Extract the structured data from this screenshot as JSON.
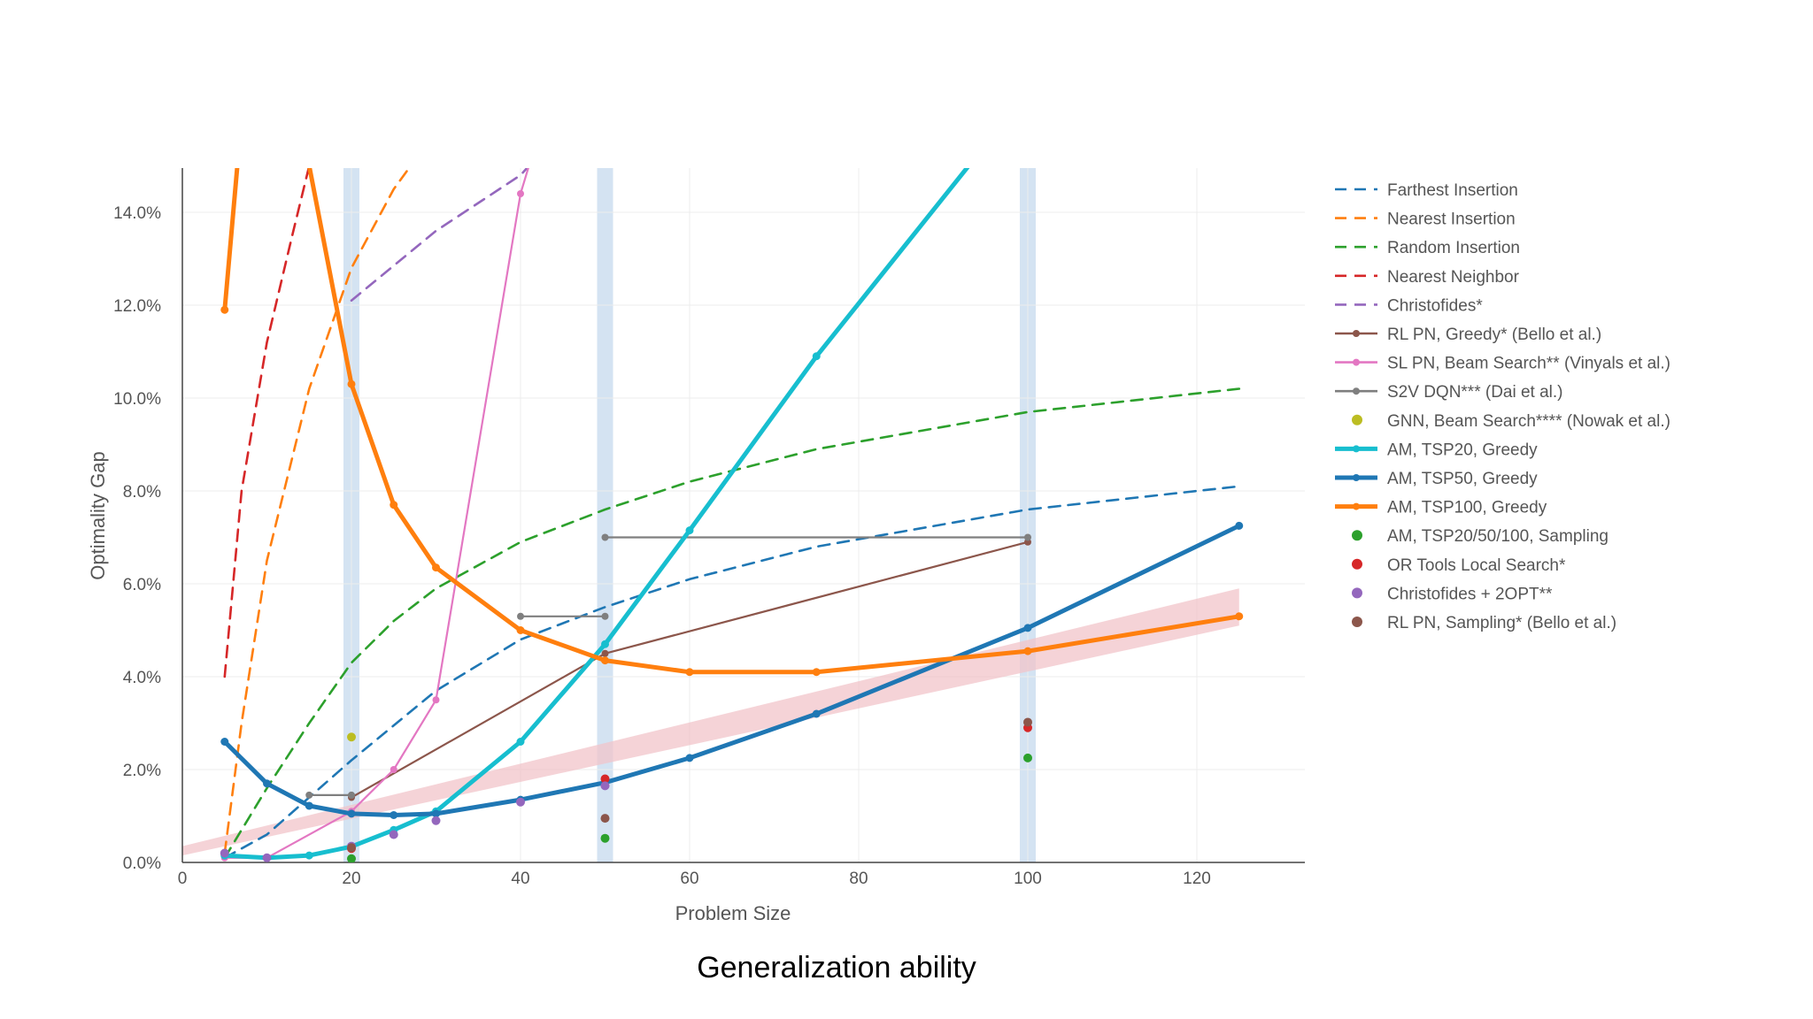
{
  "caption": "Generalization ability",
  "chart_data": {
    "type": "line",
    "xlabel": "Problem Size",
    "ylabel": "Optimality Gap",
    "xlim": [
      0,
      132
    ],
    "ylim": [
      0,
      15
    ],
    "x_ticks": [
      0,
      20,
      40,
      60,
      80,
      100,
      120
    ],
    "x_tick_labels": [
      "0",
      "20",
      "40",
      "60",
      "80",
      "100",
      "120"
    ],
    "y_ticks": [
      0,
      2,
      4,
      6,
      8,
      10,
      12,
      14
    ],
    "y_tick_labels": [
      "0.0%",
      "2.0%",
      "4.0%",
      "6.0%",
      "8.0%",
      "10.0%",
      "12.0%",
      "14.0%"
    ],
    "grid": true,
    "legend_position": "right",
    "highlight_bands_x": [
      20,
      50,
      100
    ],
    "shaded_band": {
      "lower": [
        [
          0,
          0.15
        ],
        [
          125,
          5.1
        ]
      ],
      "upper": [
        [
          0,
          0.35
        ],
        [
          125,
          5.9
        ]
      ],
      "color": "#f2c4c9"
    },
    "series": [
      {
        "name": "Farthest Insertion",
        "style": "dashed",
        "color": "#1f77b4",
        "x": [
          5,
          10,
          20,
          30,
          40,
          50,
          60,
          75,
          100,
          125
        ],
        "y": [
          0.1,
          0.6,
          2.2,
          3.7,
          4.8,
          5.5,
          6.1,
          6.8,
          7.6,
          8.1
        ]
      },
      {
        "name": "Nearest Insertion",
        "style": "dashed",
        "color": "#ff7f0e",
        "x": [
          5,
          7,
          10,
          15,
          20,
          25,
          27
        ],
        "y": [
          0.2,
          3.0,
          6.5,
          10.2,
          12.8,
          14.5,
          15.0
        ]
      },
      {
        "name": "Random Insertion",
        "style": "dashed",
        "color": "#2ca02c",
        "x": [
          5,
          10,
          15,
          20,
          25,
          30,
          40,
          50,
          60,
          75,
          100,
          125
        ],
        "y": [
          0.1,
          1.6,
          3.0,
          4.3,
          5.2,
          5.9,
          6.9,
          7.6,
          8.2,
          8.9,
          9.7,
          10.2
        ]
      },
      {
        "name": "Nearest Neighbor",
        "style": "dashed",
        "color": "#d62728",
        "x": [
          5,
          7,
          10,
          13,
          15
        ],
        "y": [
          4.0,
          8.0,
          11.2,
          13.5,
          15.0
        ]
      },
      {
        "name": "Christofides*",
        "style": "dashed",
        "color": "#9467bd",
        "x": [
          20,
          30,
          40,
          41
        ],
        "y": [
          12.1,
          13.6,
          14.8,
          15.0
        ]
      },
      {
        "name": "RL PN, Greedy* (Bello et al.)",
        "style": "line-marker",
        "color": "#8c564b",
        "x": [
          20,
          50,
          100
        ],
        "y": [
          1.4,
          4.5,
          6.9
        ]
      },
      {
        "name": "SL PN, Beam Search** (Vinyals et al.)",
        "style": "line-marker",
        "color": "#e377c2",
        "x": [
          5,
          10,
          20,
          25,
          30,
          40,
          41
        ],
        "y": [
          0.1,
          0.1,
          1.1,
          2.0,
          3.5,
          14.4,
          15.0
        ]
      },
      {
        "name": "S2V DQN*** (Dai et al.)",
        "style": "line-marker",
        "color": "#7f7f7f",
        "x": [
          15,
          20,
          null,
          40,
          50,
          null,
          50,
          100
        ],
        "y": [
          1.45,
          1.45,
          null,
          5.3,
          5.3,
          null,
          7.0,
          7.0
        ]
      },
      {
        "name": "GNN, Beam Search**** (Nowak et al.)",
        "style": "marker",
        "color": "#bcbd22",
        "x": [
          20
        ],
        "y": [
          2.7
        ]
      },
      {
        "name": "AM, TSP20, Greedy",
        "style": "thick",
        "color": "#17becf",
        "x": [
          5,
          10,
          15,
          20,
          25,
          30,
          40,
          50,
          60,
          75,
          93
        ],
        "y": [
          0.15,
          0.1,
          0.15,
          0.34,
          0.7,
          1.1,
          2.6,
          4.7,
          7.15,
          10.9,
          15.0
        ]
      },
      {
        "name": "AM, TSP50, Greedy",
        "style": "thick",
        "color": "#1f77b4",
        "x": [
          5,
          10,
          15,
          20,
          25,
          30,
          40,
          50,
          60,
          75,
          100,
          125
        ],
        "y": [
          2.6,
          1.7,
          1.22,
          1.05,
          1.02,
          1.05,
          1.35,
          1.72,
          2.25,
          3.2,
          5.05,
          7.25
        ]
      },
      {
        "name": "AM, TSP100, Greedy",
        "style": "thick",
        "color": "#ff7f0e",
        "x": [
          5,
          6.5,
          null,
          15,
          20,
          25,
          30,
          40,
          50,
          60,
          75,
          100,
          125
        ],
        "y": [
          11.9,
          15.0,
          null,
          15.0,
          10.3,
          7.7,
          6.35,
          5.0,
          4.35,
          4.1,
          4.1,
          4.55,
          5.3
        ]
      },
      {
        "name": "AM, TSP20/50/100, Sampling",
        "style": "marker",
        "color": "#2ca02c",
        "x": [
          20,
          50,
          100
        ],
        "y": [
          0.08,
          0.52,
          2.25
        ]
      },
      {
        "name": "OR Tools Local Search*",
        "style": "marker",
        "color": "#d62728",
        "x": [
          20,
          50,
          100
        ],
        "y": [
          0.3,
          1.8,
          2.9
        ]
      },
      {
        "name": "Christofides + 2OPT**",
        "style": "marker",
        "color": "#9467bd",
        "x": [
          5,
          10,
          20,
          25,
          30,
          40,
          50
        ],
        "y": [
          0.2,
          0.1,
          0.35,
          0.6,
          0.9,
          1.3,
          1.65
        ]
      },
      {
        "name": "RL PN, Sampling* (Bello et al.)",
        "style": "marker",
        "color": "#8c564b",
        "x": [
          20,
          50,
          100
        ],
        "y": [
          0.32,
          0.95,
          3.02
        ]
      }
    ]
  }
}
